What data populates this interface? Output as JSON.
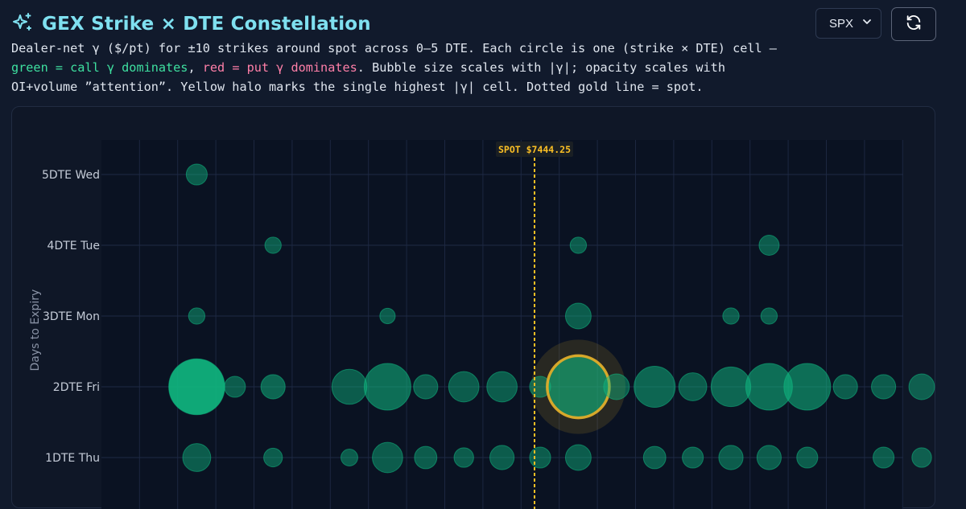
{
  "header": {
    "title": "GEX Strike × DTE Constellation",
    "title_icon": "sparkles-icon"
  },
  "description": {
    "part1": "Dealer-net γ ($/pt) for ±10 strikes around spot across 0–5 DTE. Each circle is one (strike × DTE) cell — ",
    "green": "green = call γ dominates",
    "sep": ", ",
    "red": "red = put γ dominates",
    "part2": ". Bubble size scales with |γ|; opacity scales with OI+volume ”attention”. Yellow halo marks the single highest |γ| cell. Dotted gold line = spot."
  },
  "controls": {
    "symbol_selected": "SPX",
    "refresh_icon": "refresh-icon"
  },
  "colors": {
    "call": "#10b981",
    "put": "#f43f5e",
    "spot": "#fbbf24",
    "title": "#7fe0f0"
  },
  "chart_data": {
    "type": "scatter",
    "ylabel": "Days to Expiry",
    "y_categories": [
      "5DTE Wed",
      "4DTE Tue",
      "3DTE Mon",
      "2DTE Fri",
      "1DTE Thu"
    ],
    "x_columns": 21,
    "spot_label": "SPOT $7444.25",
    "spot_position_columns": 10.0,
    "grid": true,
    "points": [
      {
        "dte": "5DTE Wed",
        "col": 1,
        "mag": 0.45,
        "opacity": 0.45
      },
      {
        "dte": "4DTE Tue",
        "col": 3,
        "mag": 0.35,
        "opacity": 0.45
      },
      {
        "dte": "4DTE Tue",
        "col": 11,
        "mag": 0.35,
        "opacity": 0.45
      },
      {
        "dte": "4DTE Tue",
        "col": 16,
        "mag": 0.43,
        "opacity": 0.45
      },
      {
        "dte": "3DTE Mon",
        "col": 1,
        "mag": 0.35,
        "opacity": 0.45
      },
      {
        "dte": "3DTE Mon",
        "col": 6,
        "mag": 0.33,
        "opacity": 0.45
      },
      {
        "dte": "3DTE Mon",
        "col": 11,
        "mag": 0.55,
        "opacity": 0.45
      },
      {
        "dte": "3DTE Mon",
        "col": 15,
        "mag": 0.35,
        "opacity": 0.45
      },
      {
        "dte": "3DTE Mon",
        "col": 16,
        "mag": 0.35,
        "opacity": 0.45
      },
      {
        "dte": "2DTE Fri",
        "col": 1,
        "mag": 1.2,
        "opacity": 0.9
      },
      {
        "dte": "2DTE Fri",
        "col": 2,
        "mag": 0.45,
        "opacity": 0.45
      },
      {
        "dte": "2DTE Fri",
        "col": 3,
        "mag": 0.52,
        "opacity": 0.5
      },
      {
        "dte": "2DTE Fri",
        "col": 5,
        "mag": 0.75,
        "opacity": 0.45
      },
      {
        "dte": "2DTE Fri",
        "col": 6,
        "mag": 1.0,
        "opacity": 0.55
      },
      {
        "dte": "2DTE Fri",
        "col": 7,
        "mag": 0.52,
        "opacity": 0.45
      },
      {
        "dte": "2DTE Fri",
        "col": 8,
        "mag": 0.65,
        "opacity": 0.45
      },
      {
        "dte": "2DTE Fri",
        "col": 9,
        "mag": 0.65,
        "opacity": 0.45
      },
      {
        "dte": "2DTE Fri",
        "col": 10,
        "mag": 0.45,
        "opacity": 0.45
      },
      {
        "dte": "2DTE Fri",
        "col": 11,
        "mag": 1.33,
        "opacity": 0.6,
        "highest": true
      },
      {
        "dte": "2DTE Fri",
        "col": 12,
        "mag": 0.55,
        "opacity": 0.45
      },
      {
        "dte": "2DTE Fri",
        "col": 13,
        "mag": 0.88,
        "opacity": 0.5
      },
      {
        "dte": "2DTE Fri",
        "col": 14,
        "mag": 0.6,
        "opacity": 0.45
      },
      {
        "dte": "2DTE Fri",
        "col": 15,
        "mag": 0.85,
        "opacity": 0.5
      },
      {
        "dte": "2DTE Fri",
        "col": 16,
        "mag": 1.0,
        "opacity": 0.55
      },
      {
        "dte": "2DTE Fri",
        "col": 17,
        "mag": 1.0,
        "opacity": 0.55
      },
      {
        "dte": "2DTE Fri",
        "col": 18,
        "mag": 0.52,
        "opacity": 0.45
      },
      {
        "dte": "2DTE Fri",
        "col": 19,
        "mag": 0.52,
        "opacity": 0.45
      },
      {
        "dte": "2DTE Fri",
        "col": 20,
        "mag": 0.55,
        "opacity": 0.45
      },
      {
        "dte": "1DTE Thu",
        "col": 1,
        "mag": 0.6,
        "opacity": 0.45
      },
      {
        "dte": "1DTE Thu",
        "col": 3,
        "mag": 0.4,
        "opacity": 0.45
      },
      {
        "dte": "1DTE Thu",
        "col": 5,
        "mag": 0.36,
        "opacity": 0.45
      },
      {
        "dte": "1DTE Thu",
        "col": 6,
        "mag": 0.65,
        "opacity": 0.45
      },
      {
        "dte": "1DTE Thu",
        "col": 7,
        "mag": 0.48,
        "opacity": 0.45
      },
      {
        "dte": "1DTE Thu",
        "col": 8,
        "mag": 0.42,
        "opacity": 0.45
      },
      {
        "dte": "1DTE Thu",
        "col": 9,
        "mag": 0.52,
        "opacity": 0.45
      },
      {
        "dte": "1DTE Thu",
        "col": 10,
        "mag": 0.45,
        "opacity": 0.45
      },
      {
        "dte": "1DTE Thu",
        "col": 11,
        "mag": 0.55,
        "opacity": 0.45
      },
      {
        "dte": "1DTE Thu",
        "col": 13,
        "mag": 0.48,
        "opacity": 0.45
      },
      {
        "dte": "1DTE Thu",
        "col": 14,
        "mag": 0.45,
        "opacity": 0.45
      },
      {
        "dte": "1DTE Thu",
        "col": 15,
        "mag": 0.52,
        "opacity": 0.45
      },
      {
        "dte": "1DTE Thu",
        "col": 16,
        "mag": 0.52,
        "opacity": 0.45
      },
      {
        "dte": "1DTE Thu",
        "col": 17,
        "mag": 0.45,
        "opacity": 0.45
      },
      {
        "dte": "1DTE Thu",
        "col": 19,
        "mag": 0.45,
        "opacity": 0.45
      },
      {
        "dte": "1DTE Thu",
        "col": 20,
        "mag": 0.42,
        "opacity": 0.45
      }
    ]
  }
}
